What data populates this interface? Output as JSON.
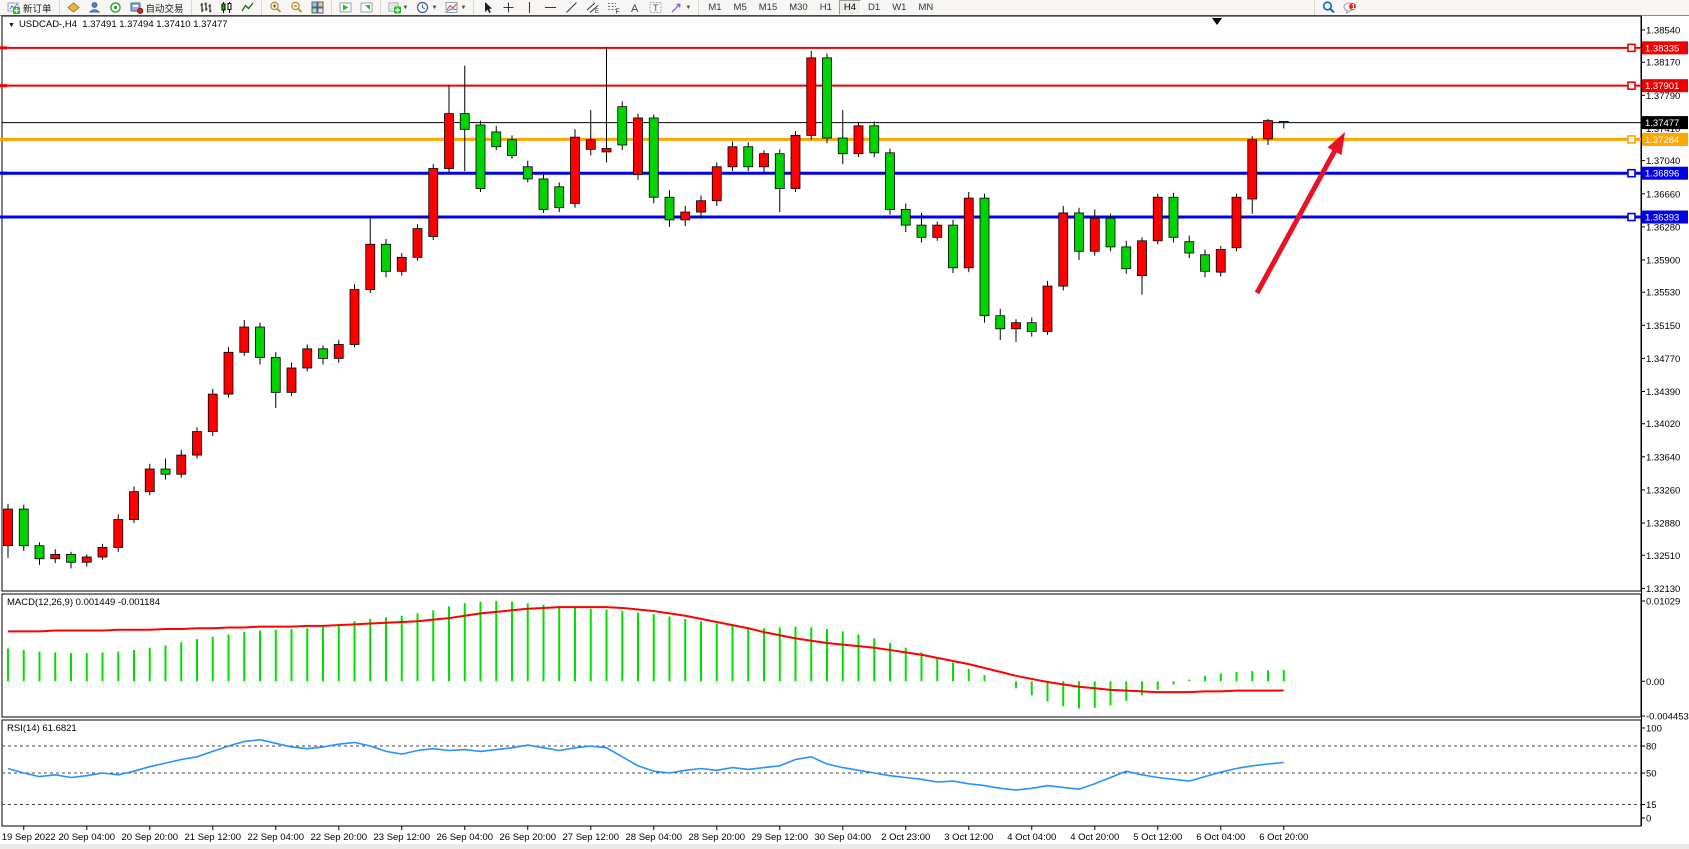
{
  "toolbar": {
    "groups": [
      {
        "items": [
          {
            "name": "new-order-button",
            "icon": "neworder",
            "label": "新订单"
          }
        ]
      },
      {
        "items": [
          {
            "name": "market-watch-icon",
            "icon": "gold"
          },
          {
            "name": "data-window-icon",
            "icon": "person"
          },
          {
            "name": "navigator-icon",
            "icon": "signal"
          },
          {
            "name": "autotrading-button",
            "icon": "robot",
            "label": "自动交易"
          }
        ]
      },
      {
        "items": [
          {
            "name": "bar-chart-mode-button",
            "icon": "barchart"
          },
          {
            "name": "candlestick-mode-button",
            "icon": "candleicon"
          },
          {
            "name": "line-chart-mode-button",
            "icon": "linechart"
          }
        ]
      },
      {
        "items": [
          {
            "name": "zoom-in-button",
            "icon": "zoomin"
          },
          {
            "name": "zoom-out-button",
            "icon": "zoomout"
          },
          {
            "name": "tile-windows-button",
            "icon": "tile"
          }
        ]
      },
      {
        "items": [
          {
            "name": "scroll-to-end-button",
            "icon": "shiftend"
          },
          {
            "name": "chart-shift-button",
            "icon": "shiftauto"
          }
        ]
      },
      {
        "items": [
          {
            "name": "new-chart-button",
            "icon": "newchart",
            "caret": true
          },
          {
            "name": "period-button",
            "icon": "clock",
            "caret": true
          },
          {
            "name": "template-button",
            "icon": "template",
            "caret": true
          }
        ]
      },
      {
        "items": [
          {
            "name": "cursor-tool-button",
            "icon": "cursor"
          },
          {
            "name": "crosshair-tool-button",
            "icon": "crosshair"
          },
          {
            "name": "vertical-line-tool-button",
            "icon": "vline"
          },
          {
            "name": "horizontal-line-tool-button",
            "icon": "hline"
          },
          {
            "name": "trendline-tool-button",
            "icon": "trend"
          },
          {
            "name": "channel-tool-button",
            "icon": "channel"
          },
          {
            "name": "fibonacci-tool-button",
            "icon": "fibo"
          },
          {
            "name": "text-tool-button",
            "icon": "textA"
          },
          {
            "name": "label-tool-button",
            "icon": "labelT"
          },
          {
            "name": "shapes-tool-button",
            "icon": "shapes",
            "caret": true
          }
        ]
      },
      {
        "items": [
          {
            "name": "timeframe-m1-button",
            "tf": "M1"
          },
          {
            "name": "timeframe-m5-button",
            "tf": "M5"
          },
          {
            "name": "timeframe-m15-button",
            "tf": "M15"
          },
          {
            "name": "timeframe-m30-button",
            "tf": "M30"
          },
          {
            "name": "timeframe-h1-button",
            "tf": "H1"
          },
          {
            "name": "timeframe-h4-button",
            "tf": "H4",
            "active": true
          },
          {
            "name": "timeframe-d1-button",
            "tf": "D1"
          },
          {
            "name": "timeframe-w1-button",
            "tf": "W1"
          },
          {
            "name": "timeframe-mn-button",
            "tf": "MN"
          }
        ]
      },
      {
        "gap": true,
        "items": [
          {
            "name": "search-button",
            "icon": "search"
          },
          {
            "name": "notifications-button",
            "icon": "chat",
            "badge": "1"
          }
        ]
      }
    ]
  },
  "chart": {
    "title_symbol": "USDCAD-,H4",
    "title_quotes": "1.37491 1.37494 1.37410 1.37477",
    "collapse_glyph": "▼"
  },
  "chart_data": {
    "type": "candlestick-with-indicators",
    "symbol": "USDCAD-",
    "period": "H4",
    "current_bar": {
      "open": "1.37491",
      "high": "1.37494",
      "low": "1.37410",
      "close": "1.37477"
    },
    "colors": {
      "up": "#ff0000",
      "down": "#00d300",
      "wick": "#000000",
      "macd_hist": "#00e000",
      "macd_signal": "#ff0000",
      "rsi_line": "#2492ff",
      "level_red": "#ee0000",
      "level_orange": "#ffa500",
      "level_blue": "#0000e6",
      "current_price": "#000000",
      "arrow": "#e81224"
    },
    "price_axis_ticks": [
      "1.38540",
      "1.38170",
      "1.37790",
      "1.37410",
      "1.37040",
      "1.36660",
      "1.36280",
      "1.35900",
      "1.35530",
      "1.35150",
      "1.34770",
      "1.34390",
      "1.34020",
      "1.33640",
      "1.33260",
      "1.32880",
      "1.32510",
      "1.32130"
    ],
    "hlines": [
      {
        "price": 1.38335,
        "label": "1.38335",
        "color": "#ee0000",
        "width": 2
      },
      {
        "price": 1.37901,
        "label": "1.37901",
        "color": "#ee0000",
        "width": 2
      },
      {
        "price": 1.37284,
        "label": "1.37284",
        "color": "#ffa500",
        "width": 3
      },
      {
        "price": 1.36896,
        "label": "1.36896",
        "color": "#0000e6",
        "width": 3
      },
      {
        "price": 1.36393,
        "label": "1.36393",
        "color": "#0000e6",
        "width": 3
      }
    ],
    "current_price_line": {
      "price": 1.37477,
      "label": "1.37477",
      "color": "#000000"
    },
    "candles": [
      [
        1.3262,
        1.331,
        1.3248,
        1.3304
      ],
      [
        1.3304,
        1.3309,
        1.3256,
        1.3262
      ],
      [
        1.3262,
        1.3266,
        1.324,
        1.3247
      ],
      [
        1.3247,
        1.3258,
        1.3242,
        1.3252
      ],
      [
        1.3252,
        1.3255,
        1.3236,
        1.3243
      ],
      [
        1.3243,
        1.3252,
        1.3238,
        1.3249
      ],
      [
        1.3249,
        1.3264,
        1.3246,
        1.326
      ],
      [
        1.326,
        1.3298,
        1.3255,
        1.3292
      ],
      [
        1.3292,
        1.333,
        1.3288,
        1.3324
      ],
      [
        1.3324,
        1.3356,
        1.332,
        1.335
      ],
      [
        1.335,
        1.3362,
        1.3338,
        1.3344
      ],
      [
        1.3344,
        1.3372,
        1.334,
        1.3366
      ],
      [
        1.3366,
        1.3398,
        1.3362,
        1.3393
      ],
      [
        1.3393,
        1.3442,
        1.3388,
        1.3436
      ],
      [
        1.3436,
        1.349,
        1.3432,
        1.3484
      ],
      [
        1.3484,
        1.3521,
        1.348,
        1.3513
      ],
      [
        1.3513,
        1.3518,
        1.347,
        1.3478
      ],
      [
        1.3478,
        1.3484,
        1.342,
        1.3438
      ],
      [
        1.3438,
        1.3472,
        1.3434,
        1.3466
      ],
      [
        1.3466,
        1.3493,
        1.3462,
        1.3488
      ],
      [
        1.3488,
        1.3492,
        1.347,
        1.3477
      ],
      [
        1.3477,
        1.3498,
        1.3472,
        1.3493
      ],
      [
        1.3493,
        1.3562,
        1.349,
        1.3556
      ],
      [
        1.3556,
        1.364,
        1.3552,
        1.3608
      ],
      [
        1.3608,
        1.3614,
        1.357,
        1.3577
      ],
      [
        1.3577,
        1.3598,
        1.3572,
        1.3593
      ],
      [
        1.3593,
        1.3631,
        1.3589,
        1.3626
      ],
      [
        1.3617,
        1.37,
        1.3613,
        1.3695
      ],
      [
        1.3695,
        1.379,
        1.369,
        1.3758
      ],
      [
        1.3758,
        1.3813,
        1.3692,
        1.374
      ],
      [
        1.3745,
        1.375,
        1.3668,
        1.3672
      ],
      [
        1.3737,
        1.3744,
        1.3716,
        1.372
      ],
      [
        1.3728,
        1.3733,
        1.3706,
        1.371
      ],
      [
        1.3697,
        1.3704,
        1.3679,
        1.3683
      ],
      [
        1.3683,
        1.3688,
        1.3644,
        1.3648
      ],
      [
        1.3674,
        1.3679,
        1.3645,
        1.365
      ],
      [
        1.3655,
        1.374,
        1.365,
        1.3731
      ],
      [
        1.3717,
        1.3762,
        1.371,
        1.3728
      ],
      [
        1.3714,
        1.3834,
        1.3702,
        1.3718
      ],
      [
        1.3766,
        1.3772,
        1.3716,
        1.3722
      ],
      [
        1.3688,
        1.3758,
        1.3682,
        1.3753
      ],
      [
        1.3753,
        1.3757,
        1.3655,
        1.3662
      ],
      [
        1.3662,
        1.367,
        1.3628,
        1.3636
      ],
      [
        1.3636,
        1.3652,
        1.3629,
        1.3645
      ],
      [
        1.3645,
        1.3664,
        1.3638,
        1.3658
      ],
      [
        1.3658,
        1.3702,
        1.3652,
        1.3697
      ],
      [
        1.3697,
        1.3726,
        1.3692,
        1.372
      ],
      [
        1.372,
        1.3725,
        1.3692,
        1.3697
      ],
      [
        1.3697,
        1.3716,
        1.369,
        1.3712
      ],
      [
        1.3712,
        1.3717,
        1.3645,
        1.3672
      ],
      [
        1.3672,
        1.3738,
        1.3668,
        1.3733
      ],
      [
        1.3733,
        1.383,
        1.3728,
        1.3822
      ],
      [
        1.3822,
        1.3827,
        1.3724,
        1.373
      ],
      [
        1.373,
        1.3762,
        1.37,
        1.3712
      ],
      [
        1.3712,
        1.3748,
        1.3708,
        1.3744
      ],
      [
        1.3744,
        1.3749,
        1.3708,
        1.3713
      ],
      [
        1.3713,
        1.3718,
        1.3642,
        1.3648
      ],
      [
        1.3648,
        1.3655,
        1.3622,
        1.363
      ],
      [
        1.363,
        1.3644,
        1.361,
        1.3616
      ],
      [
        1.3616,
        1.3634,
        1.3612,
        1.363
      ],
      [
        1.363,
        1.3636,
        1.3575,
        1.3581
      ],
      [
        1.3581,
        1.3668,
        1.3576,
        1.3661
      ],
      [
        1.3661,
        1.3666,
        1.3518,
        1.3526
      ],
      [
        1.3526,
        1.3534,
        1.3498,
        1.3511
      ],
      [
        1.3511,
        1.3522,
        1.3496,
        1.3518
      ],
      [
        1.3518,
        1.3524,
        1.3502,
        1.3508
      ],
      [
        1.3508,
        1.3566,
        1.3504,
        1.356
      ],
      [
        1.356,
        1.3652,
        1.3555,
        1.3644
      ],
      [
        1.3644,
        1.365,
        1.359,
        1.36
      ],
      [
        1.36,
        1.3648,
        1.3595,
        1.3638
      ],
      [
        1.3638,
        1.3643,
        1.36,
        1.3605
      ],
      [
        1.3605,
        1.3612,
        1.3574,
        1.358
      ],
      [
        1.3572,
        1.3616,
        1.355,
        1.3612
      ],
      [
        1.3612,
        1.3666,
        1.3608,
        1.3662
      ],
      [
        1.3662,
        1.3667,
        1.361,
        1.3616
      ],
      [
        1.3611,
        1.3618,
        1.3592,
        1.3598
      ],
      [
        1.3596,
        1.3602,
        1.357,
        1.3577
      ],
      [
        1.3576,
        1.3606,
        1.3571,
        1.3602
      ],
      [
        1.3604,
        1.3666,
        1.36,
        1.3662
      ],
      [
        1.366,
        1.3732,
        1.3643,
        1.3728
      ],
      [
        1.3729,
        1.3752,
        1.3722,
        1.375
      ],
      [
        1.37491,
        1.37494,
        1.3741,
        1.37477
      ]
    ],
    "time_labels": [
      "19 Sep 2022",
      "20 Sep 04:00",
      "20 Sep 20:00",
      "21 Sep 12:00",
      "22 Sep 04:00",
      "22 Sep 20:00",
      "23 Sep 12:00",
      "26 Sep 04:00",
      "26 Sep 20:00",
      "27 Sep 12:00",
      "28 Sep 04:00",
      "28 Sep 20:00",
      "29 Sep 12:00",
      "30 Sep 04:00",
      "2 Oct 23:00",
      "3 Oct 12:00",
      "4 Oct 04:00",
      "4 Oct 20:00",
      "5 Oct 12:00",
      "6 Oct 04:00",
      "6 Oct 20:00"
    ],
    "macd": {
      "label": "MACD(12,26,9)",
      "values": "0.001449 -0.001184",
      "axis_ticks": [
        "0.01029",
        "0.00",
        "-0.004453"
      ],
      "axis_values": [
        0.01029,
        0.0,
        -0.004453
      ],
      "histogram": [
        0.0042,
        0.004,
        0.0038,
        0.0037,
        0.0036,
        0.0036,
        0.0037,
        0.0038,
        0.004,
        0.0043,
        0.0046,
        0.005,
        0.0054,
        0.0057,
        0.006,
        0.0063,
        0.0065,
        0.0066,
        0.0067,
        0.0068,
        0.007,
        0.0073,
        0.0077,
        0.008,
        0.0082,
        0.0084,
        0.0087,
        0.0091,
        0.0096,
        0.01,
        0.0102,
        0.0103,
        0.0102,
        0.01,
        0.0098,
        0.0096,
        0.0094,
        0.0093,
        0.0092,
        0.009,
        0.0088,
        0.0086,
        0.0083,
        0.008,
        0.0077,
        0.0074,
        0.0071,
        0.0069,
        0.0068,
        0.0069,
        0.007,
        0.0069,
        0.0067,
        0.0064,
        0.006,
        0.0055,
        0.0049,
        0.0043,
        0.0037,
        0.0031,
        0.0024,
        0.0016,
        0.0008,
        0.0,
        -0.0009,
        -0.0018,
        -0.0026,
        -0.0032,
        -0.0035,
        -0.0034,
        -0.0031,
        -0.0025,
        -0.0018,
        -0.0011,
        -0.0004,
        0.0002,
        0.0007,
        0.001,
        0.0012,
        0.0013,
        0.0014,
        0.001449
      ],
      "signal": [
        0.0064,
        0.0064,
        0.0064,
        0.0065,
        0.0065,
        0.0065,
        0.0065,
        0.0066,
        0.0066,
        0.0066,
        0.0067,
        0.0067,
        0.0068,
        0.0068,
        0.0069,
        0.0069,
        0.007,
        0.007,
        0.007,
        0.0071,
        0.0071,
        0.0072,
        0.0073,
        0.0074,
        0.0075,
        0.0076,
        0.0077,
        0.0079,
        0.0081,
        0.0084,
        0.0087,
        0.0089,
        0.0091,
        0.0093,
        0.0094,
        0.0095,
        0.0095,
        0.0095,
        0.0095,
        0.0094,
        0.0092,
        0.009,
        0.0087,
        0.0084,
        0.008,
        0.0076,
        0.0072,
        0.0068,
        0.0063,
        0.0059,
        0.0055,
        0.0052,
        0.0049,
        0.0047,
        0.0045,
        0.0043,
        0.004,
        0.0037,
        0.0034,
        0.003,
        0.0026,
        0.0022,
        0.0017,
        0.0012,
        0.0007,
        0.0003,
        -0.0001,
        -0.0004,
        -0.0007,
        -0.0009,
        -0.0011,
        -0.0012,
        -0.0013,
        -0.0014,
        -0.0014,
        -0.0014,
        -0.0013,
        -0.0013,
        -0.0012,
        -0.0012,
        -0.0012,
        -0.001184
      ]
    },
    "rsi": {
      "label": "RSI(14)",
      "value": "61.6821",
      "axis_ticks": [
        "100",
        "80",
        "50",
        "15",
        "0"
      ],
      "axis_values": [
        100,
        80,
        50,
        15,
        0
      ],
      "dashed_levels": [
        80,
        50,
        15
      ],
      "series": [
        55,
        50,
        46,
        48,
        45,
        47,
        50,
        48,
        52,
        57,
        61,
        65,
        68,
        74,
        80,
        85,
        87,
        83,
        79,
        77,
        79,
        82,
        84,
        80,
        74,
        71,
        75,
        77,
        75,
        76,
        74,
        76,
        78,
        81,
        78,
        75,
        78,
        80,
        78,
        68,
        58,
        52,
        50,
        53,
        55,
        53,
        56,
        54,
        56,
        58,
        65,
        68,
        60,
        56,
        53,
        50,
        47,
        45,
        43,
        40,
        41,
        38,
        36,
        33,
        31,
        33,
        36,
        34,
        32,
        38,
        45,
        52,
        48,
        45,
        43,
        41,
        46,
        51,
        55,
        58,
        60,
        61.68
      ]
    },
    "annotations": [
      {
        "type": "arrow",
        "from": [
          1257,
          293
        ],
        "to": [
          1345,
          132
        ],
        "color": "#e81224",
        "width": 5
      }
    ]
  }
}
